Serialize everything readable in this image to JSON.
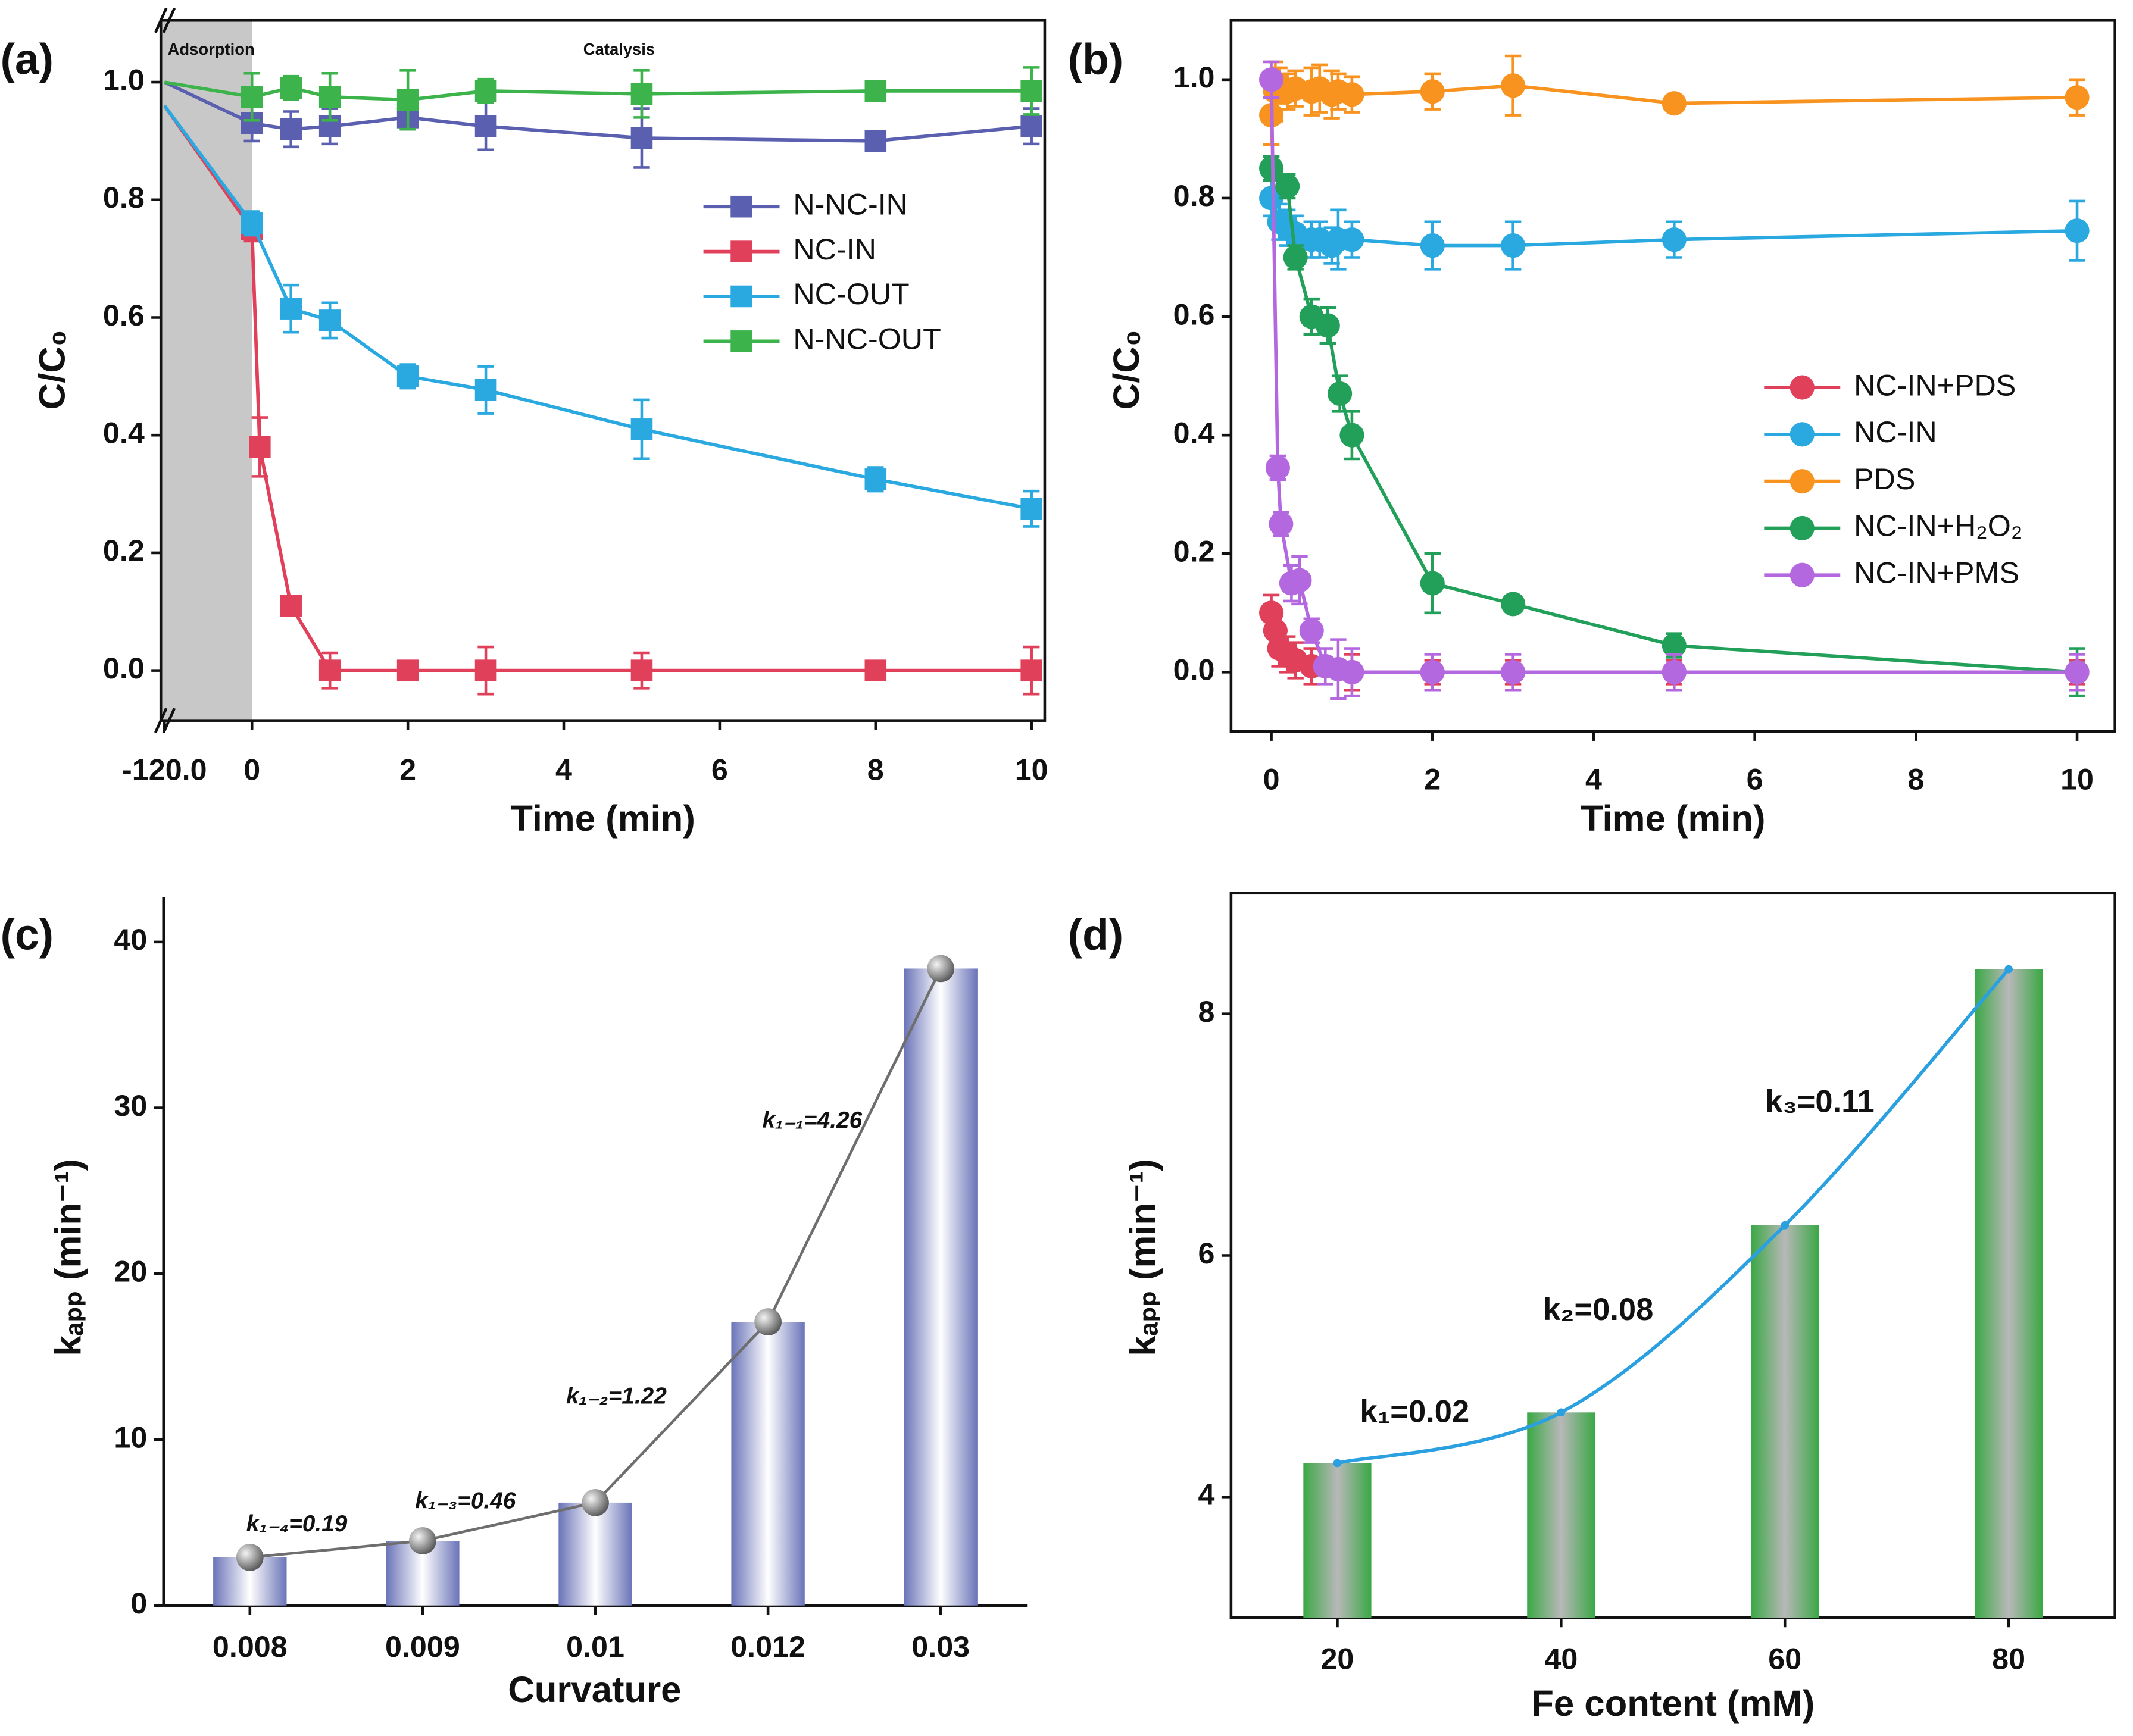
{
  "chart_data": [
    {
      "type": "line",
      "label": "(a)",
      "xlabel": "Time (min)",
      "ylabel": "C/C₀",
      "annotations": [
        "Adsorption",
        "Catalysis"
      ],
      "xlim": [
        -125,
        10.17
      ],
      "ylim": [
        -0.085,
        1.105
      ],
      "xticks": [
        {
          "value": -120,
          "label": "-120.0"
        },
        0,
        2,
        4,
        6,
        8,
        10
      ],
      "yticks": [
        {
          "value": 0,
          "label": "0.0"
        },
        0.2,
        0.4,
        0.6,
        0.8,
        {
          "value": 1,
          "label": "1.0"
        }
      ],
      "marker": "square",
      "legend": "center right",
      "series": [
        {
          "name": "N-NC-IN",
          "color": "#5b5fb0",
          "x": [
            -120,
            0,
            0.5,
            1,
            2,
            3,
            5,
            8,
            10
          ],
          "values": [
            1.0,
            0.93,
            0.92,
            0.925,
            0.94,
            0.925,
            0.905,
            0.9,
            0.925
          ],
          "errors": [
            0,
            0.03,
            0.03,
            0.03,
            0.02,
            0.04,
            0.05,
            0.01,
            0.03
          ]
        },
        {
          "name": "NC-IN",
          "color": "#e0405a",
          "x": [
            -120,
            0,
            0.1,
            0.5,
            1,
            2,
            3,
            5,
            8,
            10
          ],
          "values": [
            0.96,
            0.75,
            0.38,
            0.11,
            0,
            0,
            0,
            0,
            0,
            0
          ],
          "errors": [
            0,
            0.02,
            0.05,
            0.01,
            0.03,
            0.01,
            0.04,
            0.03,
            0.01,
            0.04
          ]
        },
        {
          "name": "NC-OUT",
          "color": "#2aa8e0",
          "x": [
            -120,
            0,
            0.5,
            1,
            2,
            3,
            5,
            8,
            10
          ],
          "values": [
            0.96,
            0.76,
            0.615,
            0.595,
            0.5,
            0.477,
            0.41,
            0.325,
            0.275
          ],
          "errors": [
            0,
            0.02,
            0.04,
            0.03,
            0.02,
            0.04,
            0.05,
            0.02,
            0.03
          ]
        },
        {
          "name": "N-NC-OUT",
          "color": "#3cb44b",
          "x": [
            -120,
            0,
            0.5,
            1,
            2,
            3,
            5,
            8,
            10
          ],
          "values": [
            1.0,
            0.975,
            0.99,
            0.975,
            0.97,
            0.985,
            0.98,
            0.985,
            0.985
          ],
          "errors": [
            0,
            0.04,
            0.02,
            0.04,
            0.05,
            0.02,
            0.04,
            0.01,
            0.04
          ]
        }
      ]
    },
    {
      "type": "line",
      "label": "(b)",
      "xlabel": "Time (min)",
      "ylabel": "C/C₀",
      "xlim": [
        -0.5,
        10.47
      ],
      "ylim": [
        -0.1,
        1.1
      ],
      "xticks": [
        0,
        2,
        4,
        6,
        8,
        10
      ],
      "yticks": [
        {
          "value": 0,
          "label": "0.0"
        },
        0.2,
        0.4,
        0.6,
        0.8,
        {
          "value": 1,
          "label": "1.0"
        }
      ],
      "marker": "circle",
      "legend": "lower right",
      "series": [
        {
          "name": "NC-IN+PDS",
          "color": "#e0405a",
          "x": [
            0,
            0.05,
            0.1,
            0.2,
            0.3,
            0.5,
            1,
            2,
            3,
            5,
            10
          ],
          "values": [
            0.1,
            0.07,
            0.04,
            0.03,
            0.02,
            0.01,
            0,
            0,
            0,
            0,
            0
          ],
          "errors": [
            0.03,
            0.03,
            0.03,
            0.03,
            0.03,
            0.03,
            0.03,
            0.02,
            0.02,
            0.02,
            0.02
          ]
        },
        {
          "name": "NC-IN",
          "color": "#2aa8e0",
          "x": [
            0,
            0.1,
            0.2,
            0.3,
            0.5,
            0.6,
            0.75,
            0.83,
            1,
            2,
            3,
            5,
            10
          ],
          "values": [
            0.8,
            0.76,
            0.75,
            0.74,
            0.73,
            0.73,
            0.72,
            0.73,
            0.73,
            0.72,
            0.72,
            0.73,
            0.745
          ],
          "errors": [
            0.03,
            0.03,
            0.03,
            0.03,
            0.03,
            0.03,
            0.03,
            0.05,
            0.03,
            0.04,
            0.04,
            0.03,
            0.05
          ]
        },
        {
          "name": "PDS",
          "color": "#f7931e",
          "x": [
            0,
            0.05,
            0.1,
            0.2,
            0.3,
            0.5,
            0.6,
            0.75,
            0.83,
            1,
            2,
            3,
            5,
            10
          ],
          "values": [
            0.94,
            0.98,
            0.99,
            0.98,
            0.985,
            0.98,
            0.985,
            0.975,
            0.98,
            0.975,
            0.98,
            0.99,
            0.96,
            0.97
          ],
          "errors": [
            0.05,
            0.05,
            0.03,
            0.03,
            0.03,
            0.04,
            0.04,
            0.04,
            0.03,
            0.03,
            0.03,
            0.05,
            0.01,
            0.03
          ]
        },
        {
          "name": "NC-IN+H₂O₂",
          "color": "#22a05a",
          "x": [
            0,
            0.2,
            0.3,
            0.5,
            0.7,
            0.85,
            1,
            2,
            3,
            5,
            10
          ],
          "values": [
            0.85,
            0.82,
            0.7,
            0.6,
            0.585,
            0.47,
            0.4,
            0.15,
            0.115,
            0.045,
            0
          ],
          "errors": [
            0.02,
            0.02,
            0.02,
            0.03,
            0.03,
            0.03,
            0.04,
            0.05,
            0.01,
            0.02,
            0.04
          ]
        },
        {
          "name": "NC-IN+PMS",
          "color": "#b468e0",
          "x": [
            0,
            0.08,
            0.12,
            0.25,
            0.35,
            0.5,
            0.67,
            0.83,
            1,
            2,
            3,
            5,
            10
          ],
          "values": [
            1.0,
            0.345,
            0.25,
            0.15,
            0.155,
            0.07,
            0.01,
            0.005,
            0,
            0,
            0,
            0,
            0
          ],
          "errors": [
            0.03,
            0.02,
            0.02,
            0.03,
            0.04,
            0.02,
            0.03,
            0.05,
            0.04,
            0.03,
            0.03,
            0.03,
            0.03
          ]
        }
      ]
    },
    {
      "type": "bar",
      "label": "(c)",
      "xlabel": "Curvature",
      "ylabel": "kₐₚₚ (min⁻¹)",
      "categories": [
        "0.008",
        "0.009",
        "0.01",
        "0.012",
        "0.03"
      ],
      "values": [
        2.9,
        3.9,
        6.2,
        17.1,
        38.4
      ],
      "color": "#6a74b8",
      "line_color": "#6e6e6e",
      "annotations": [
        "k₁₋₄=0.19",
        "k₁₋₃=0.46",
        "k₁₋₂=1.22",
        "k₁₋₁=4.26"
      ],
      "ylim": [
        0,
        42.7
      ],
      "yticks": [
        0,
        10,
        20,
        30,
        40
      ]
    },
    {
      "type": "bar",
      "label": "(d)",
      "xlabel": "Fe content (mM)",
      "ylabel": "kₐₚₚ (min⁻¹)",
      "x": [
        20,
        40,
        60,
        80
      ],
      "values": [
        4.28,
        4.7,
        6.25,
        8.37
      ],
      "color": "#3aa845",
      "line_color": "#2ba0e0",
      "annotations": [
        "k₁=0.02",
        "k₂=0.08",
        "k₃=0.11"
      ],
      "xlim": [
        10.5,
        89.5
      ],
      "xticks": [
        20,
        40,
        60,
        80
      ],
      "ylim": [
        3,
        9
      ],
      "yticks": [
        4,
        6,
        8
      ]
    }
  ]
}
